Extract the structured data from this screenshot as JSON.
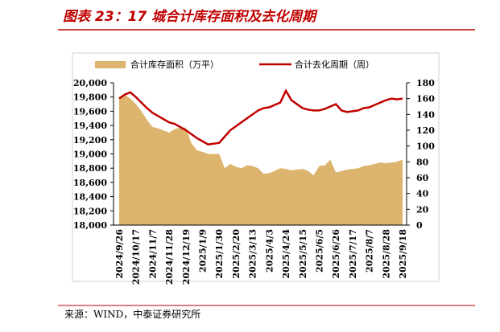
{
  "title": "图表 23：17 城合计库存面积及去化周期",
  "source": "来源：WIND，中泰证券研究所",
  "chart_data": {
    "type": "area-line",
    "categories": [
      "2024/9/26",
      null,
      null,
      "2024/10/17",
      null,
      null,
      "2024/11/7",
      null,
      null,
      "2024/11/28",
      null,
      null,
      "2024/12/19",
      null,
      null,
      "2025/1/9",
      null,
      null,
      "2025/1/30",
      null,
      null,
      "2025/2/20",
      null,
      null,
      "2025/3/13",
      null,
      null,
      "2025/4/3",
      null,
      null,
      "2025/4/24",
      null,
      null,
      "2025/5/15",
      null,
      null,
      "2025/6/5",
      null,
      null,
      "2025/6/26",
      null,
      null,
      "2025/7/17",
      null,
      null,
      "2025/8/7",
      null,
      null,
      "2025/8/28",
      null,
      null,
      "2025/9/18"
    ],
    "series": [
      {
        "name": "合计库存面积（万平）",
        "color": "#dcb46e",
        "kind": "area",
        "values": [
          19800,
          19830,
          19780,
          19700,
          19600,
          19480,
          19380,
          19360,
          19330,
          19300,
          19350,
          19370,
          19370,
          19150,
          19050,
          19030,
          19000,
          19000,
          19000,
          18800,
          18860,
          18820,
          18800,
          18840,
          18830,
          18800,
          18720,
          18730,
          18760,
          18800,
          18790,
          18770,
          18780,
          18790,
          18760,
          18700,
          18830,
          18840,
          18920,
          18740,
          18760,
          18780,
          18790,
          18800,
          18830,
          18840,
          18860,
          18880,
          18870,
          18880,
          18890,
          18920
        ]
      },
      {
        "name": "合计去化周期（周）",
        "color": "#c00000",
        "kind": "line",
        "axis": "y2",
        "values": [
          160,
          165,
          168,
          162,
          155,
          148,
          142,
          138,
          134,
          130,
          128,
          124,
          120,
          115,
          110,
          106,
          102,
          103,
          104,
          112,
          120,
          125,
          130,
          135,
          140,
          145,
          148,
          149,
          152,
          155,
          170,
          158,
          153,
          148,
          146,
          145,
          145,
          147,
          150,
          153,
          145,
          143,
          144,
          145,
          148,
          149,
          152,
          155,
          158,
          160,
          159,
          160
        ]
      }
    ],
    "ylim": [
      18000,
      20000
    ],
    "yticks": [
      {
        "value": 18000,
        "label": "18,000"
      },
      {
        "value": 18200,
        "label": "18,200"
      },
      {
        "value": 18400,
        "label": "18,400"
      },
      {
        "value": 18600,
        "label": "18,600"
      },
      {
        "value": 18800,
        "label": "18,800"
      },
      {
        "value": 19000,
        "label": "19,000"
      },
      {
        "value": 19200,
        "label": "19,200"
      },
      {
        "value": 19400,
        "label": "19,400"
      },
      {
        "value": 19600,
        "label": "19,600"
      },
      {
        "value": 19800,
        "label": "19,800"
      },
      {
        "value": 20000,
        "label": "20,000"
      }
    ],
    "y2lim": [
      0,
      180
    ],
    "y2ticks": [
      0,
      20,
      40,
      60,
      80,
      100,
      120,
      140,
      160,
      180
    ]
  }
}
